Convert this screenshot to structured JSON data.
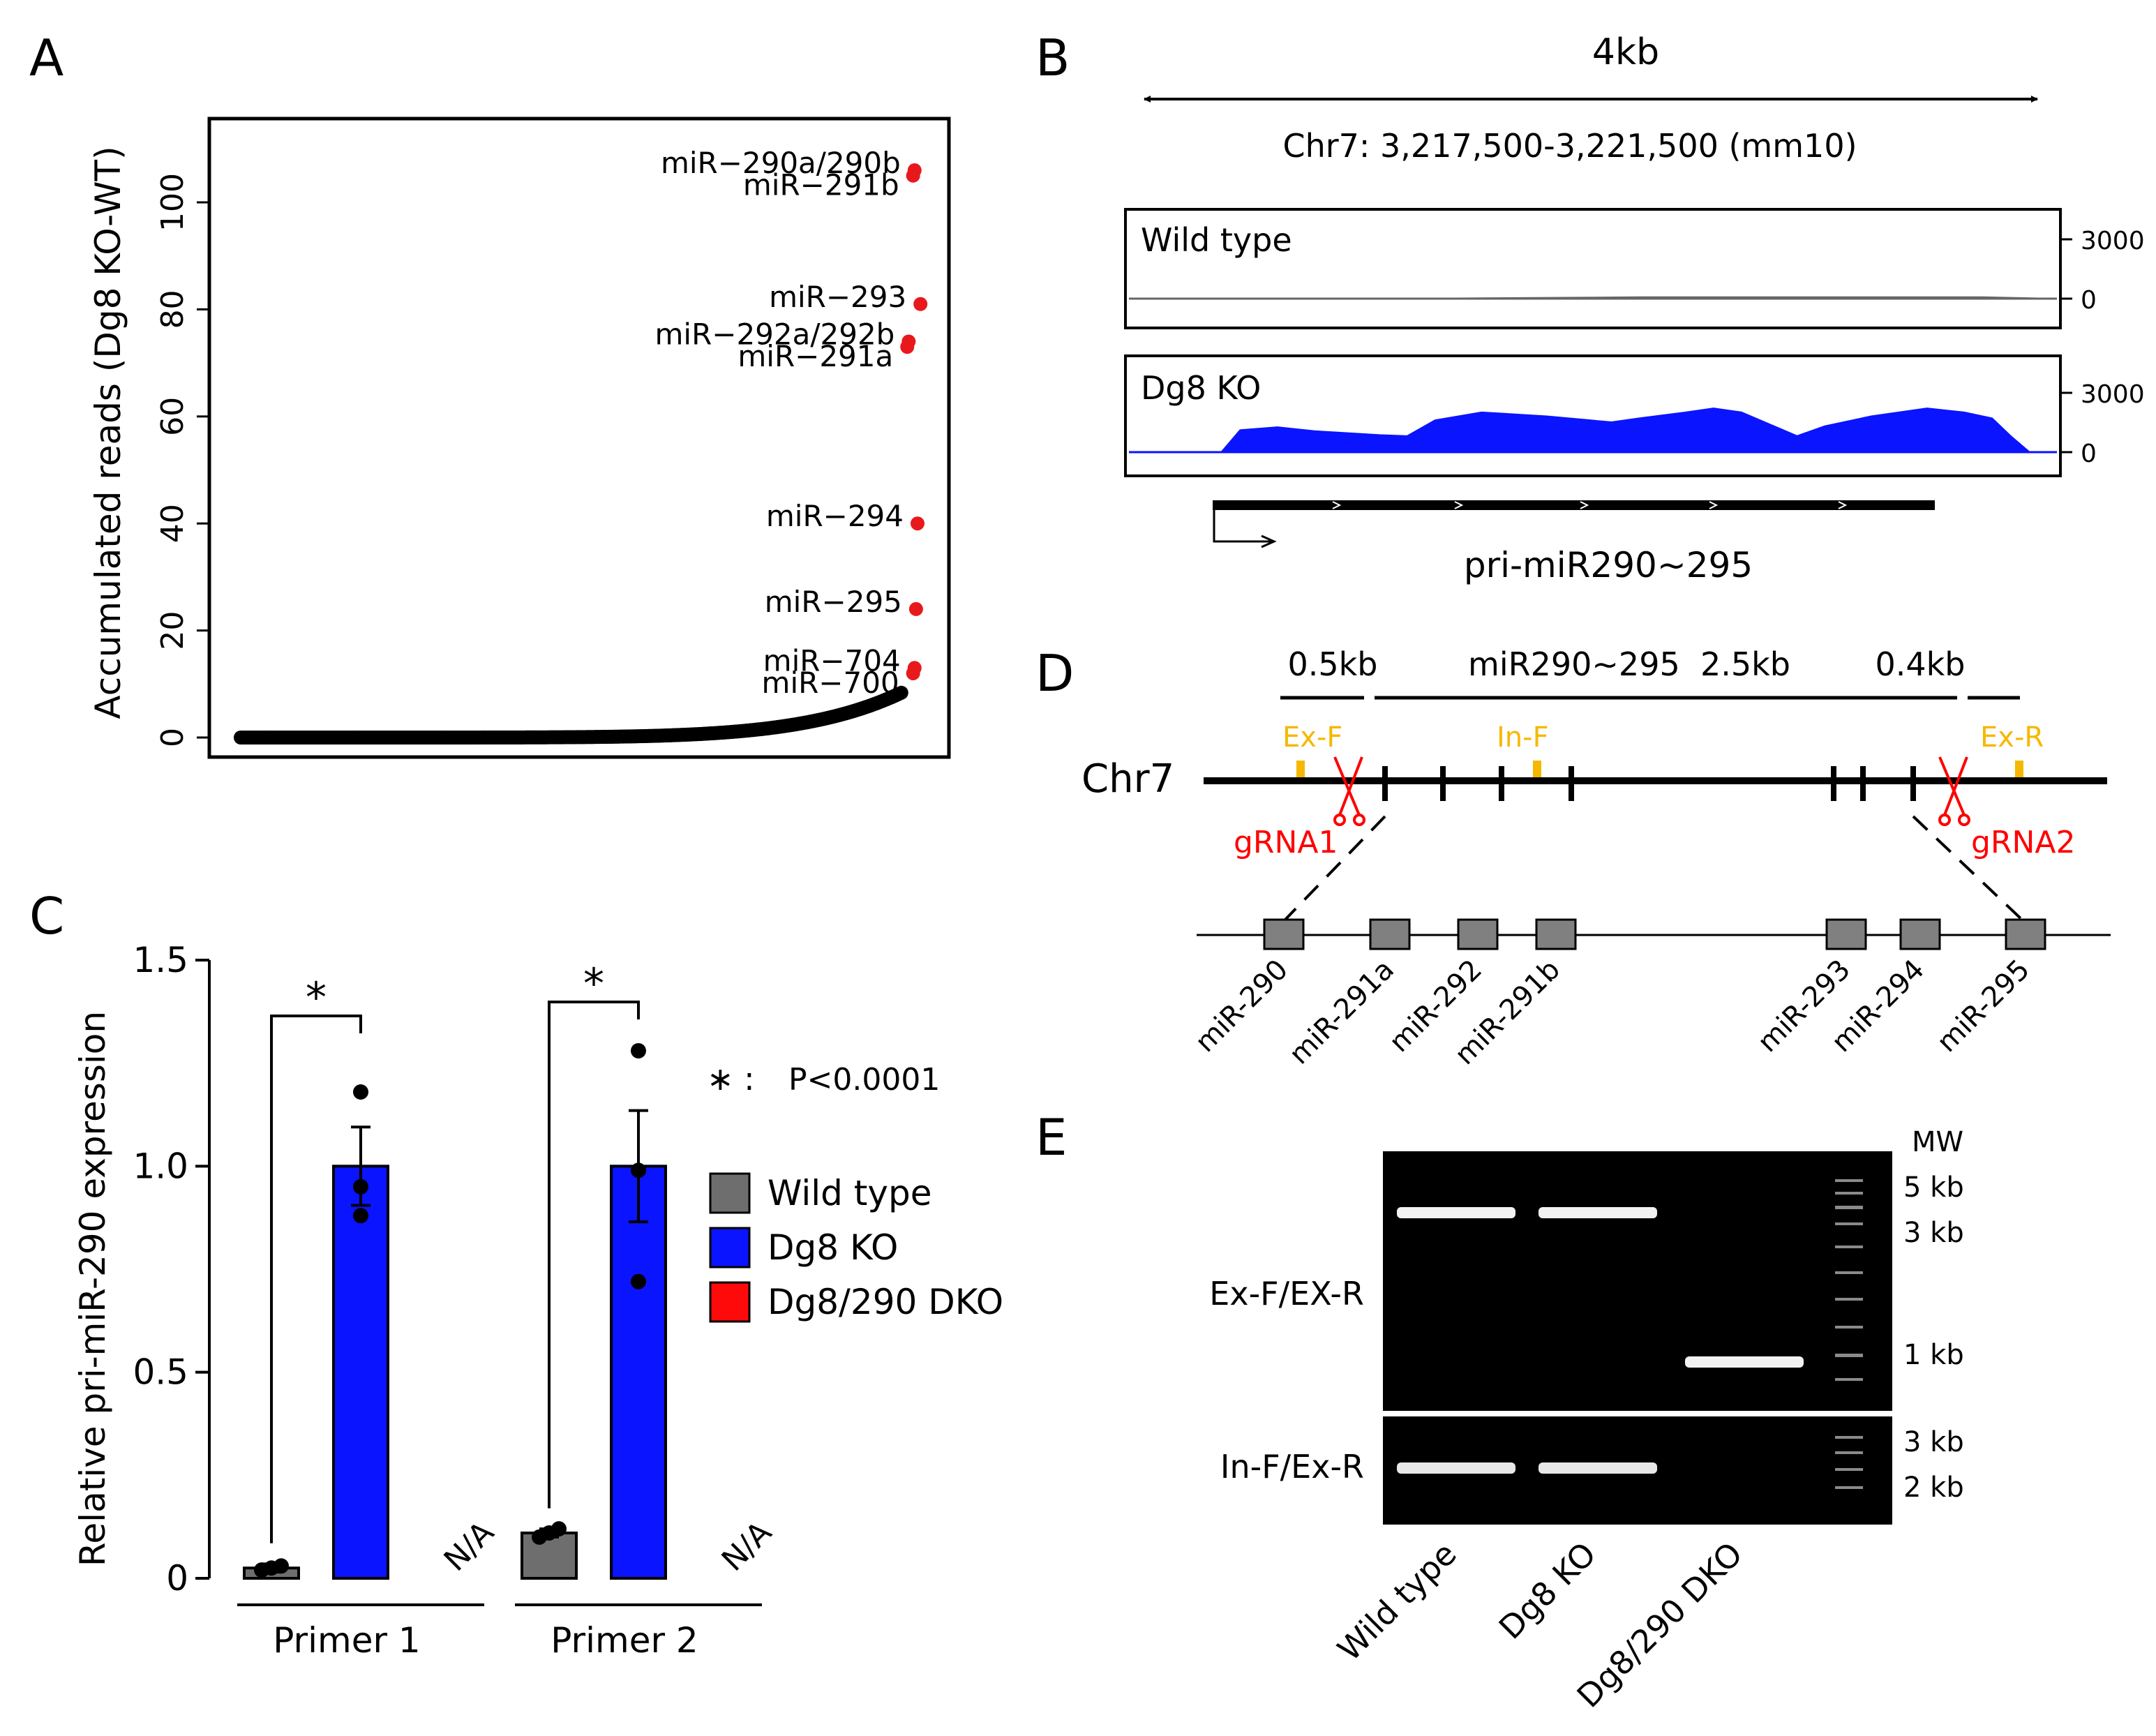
{
  "panel_letters": {
    "a": "A",
    "b": "B",
    "c": "C",
    "d": "D",
    "e": "E"
  },
  "chart_data": [
    {
      "panel": "A",
      "type": "scatter",
      "ylabel": "Accumulated reads (Dg8 KO-WT)",
      "xlabel": "",
      "ylim": [
        -3,
        115
      ],
      "y_ticks": [
        0,
        20,
        40,
        60,
        80,
        100
      ],
      "highlight_color": "#e8191c",
      "base_color": "#000000",
      "n_background_points": 460,
      "highlighted": [
        {
          "label": "miR−290a/290b",
          "rank": 458,
          "value": 106
        },
        {
          "label": "miR−291b",
          "rank": 457,
          "value": 105
        },
        {
          "label": "miR−293",
          "rank": 462,
          "value": 81
        },
        {
          "label": "miR−292a/292b",
          "rank": 454,
          "value": 74
        },
        {
          "label": "miR−291a",
          "rank": 453,
          "value": 73
        },
        {
          "label": "miR−294",
          "rank": 460,
          "value": 40
        },
        {
          "label": "miR−295",
          "rank": 459,
          "value": 24
        },
        {
          "label": "miR−704",
          "rank": 458,
          "value": 13
        },
        {
          "label": "miR−700",
          "rank": 457,
          "value": 12
        }
      ]
    },
    {
      "panel": "B",
      "type": "area",
      "scale_label": "4kb",
      "region": "Chr7: 3,217,500-3,221,500 (mm10)",
      "y_max": 3000,
      "tracks": [
        {
          "name": "Wild type",
          "color": "#666666",
          "ticks": [
            "3000",
            "0"
          ],
          "coverage": [
            [
              0,
              0
            ],
            [
              0.2,
              0
            ],
            [
              0.35,
              0
            ],
            [
              0.55,
              60
            ],
            [
              0.7,
              60
            ],
            [
              0.8,
              60
            ],
            [
              0.92,
              60
            ],
            [
              0.98,
              0
            ],
            [
              1,
              0
            ]
          ]
        },
        {
          "name": "Dg8 KO",
          "color": "#0a14ff",
          "ticks": [
            "3000",
            "0"
          ],
          "coverage": [
            [
              0,
              0
            ],
            [
              0.1,
              0
            ],
            [
              0.12,
              1100
            ],
            [
              0.16,
              1250
            ],
            [
              0.2,
              1050
            ],
            [
              0.27,
              850
            ],
            [
              0.3,
              800
            ],
            [
              0.33,
              1600
            ],
            [
              0.38,
              2000
            ],
            [
              0.45,
              1800
            ],
            [
              0.52,
              1500
            ],
            [
              0.55,
              1700
            ],
            [
              0.6,
              2000
            ],
            [
              0.63,
              2200
            ],
            [
              0.66,
              2000
            ],
            [
              0.7,
              1200
            ],
            [
              0.72,
              800
            ],
            [
              0.75,
              1300
            ],
            [
              0.8,
              1800
            ],
            [
              0.86,
              2200
            ],
            [
              0.9,
              2000
            ],
            [
              0.93,
              1700
            ],
            [
              0.95,
              800
            ],
            [
              0.97,
              0
            ],
            [
              1,
              0
            ]
          ]
        }
      ],
      "gene_label": "pri-miR290~295"
    },
    {
      "panel": "C",
      "type": "bar",
      "ylabel": "Relative pri-miR-290 expression",
      "ylim": [
        0,
        1.5
      ],
      "y_tick_labels": [
        "0",
        "0.5",
        "1.0",
        "1.5"
      ],
      "y_tick_values": [
        0,
        0.5,
        1.0,
        1.5
      ],
      "groups": [
        "Primer 1",
        "Primer 2"
      ],
      "series": [
        {
          "name": "Wild type",
          "color": "#6e6e6e",
          "values": [
            0.025,
            0.11
          ],
          "errors": [
            0.01,
            0.01
          ],
          "points": [
            [
              0.02,
              0.03,
              0.025
            ],
            [
              0.1,
              0.12,
              0.11
            ]
          ]
        },
        {
          "name": "Dg8 KO",
          "color": "#0a14ff",
          "values": [
            1.0,
            1.0
          ],
          "errors": [
            0.095,
            0.135
          ],
          "points": [
            [
              1.18,
              0.88,
              0.95
            ],
            [
              1.28,
              0.72,
              0.99
            ]
          ]
        },
        {
          "name": "Dg8/290 DKO",
          "color": "#ff0a0a",
          "values": [
            null,
            null
          ],
          "na_label": "N/A"
        }
      ],
      "significance_mark": "*",
      "significance_note": "P<0.0001",
      "note_prefix": "∗ :"
    }
  ],
  "panel_d": {
    "chr_label": "Chr7",
    "sizes": [
      "0.5kb",
      "miR290~295  2.5kb",
      "0.4kb"
    ],
    "primers": [
      "Ex-F",
      "In-F",
      "Ex-R"
    ],
    "grnas": [
      "gRNA1",
      "gRNA2"
    ],
    "mirnas": [
      "miR-290",
      "miR-291a",
      "miR-292",
      "miR-291b",
      "miR-293",
      "miR-294",
      "miR-295"
    ],
    "primer_color": "#f5b800",
    "grna_color": "#ff0000"
  },
  "panel_e": {
    "mw_title": "MW",
    "top_row_label": "Ex-F/EX-R",
    "bottom_row_label": "In-F/Ex-R",
    "top_markers": [
      "5 kb",
      "3 kb",
      "1 kb"
    ],
    "bottom_markers": [
      "3 kb",
      "2 kb"
    ],
    "lanes": [
      "Wild type",
      "Dg8 KO",
      "Dg8/290 DKO"
    ]
  }
}
